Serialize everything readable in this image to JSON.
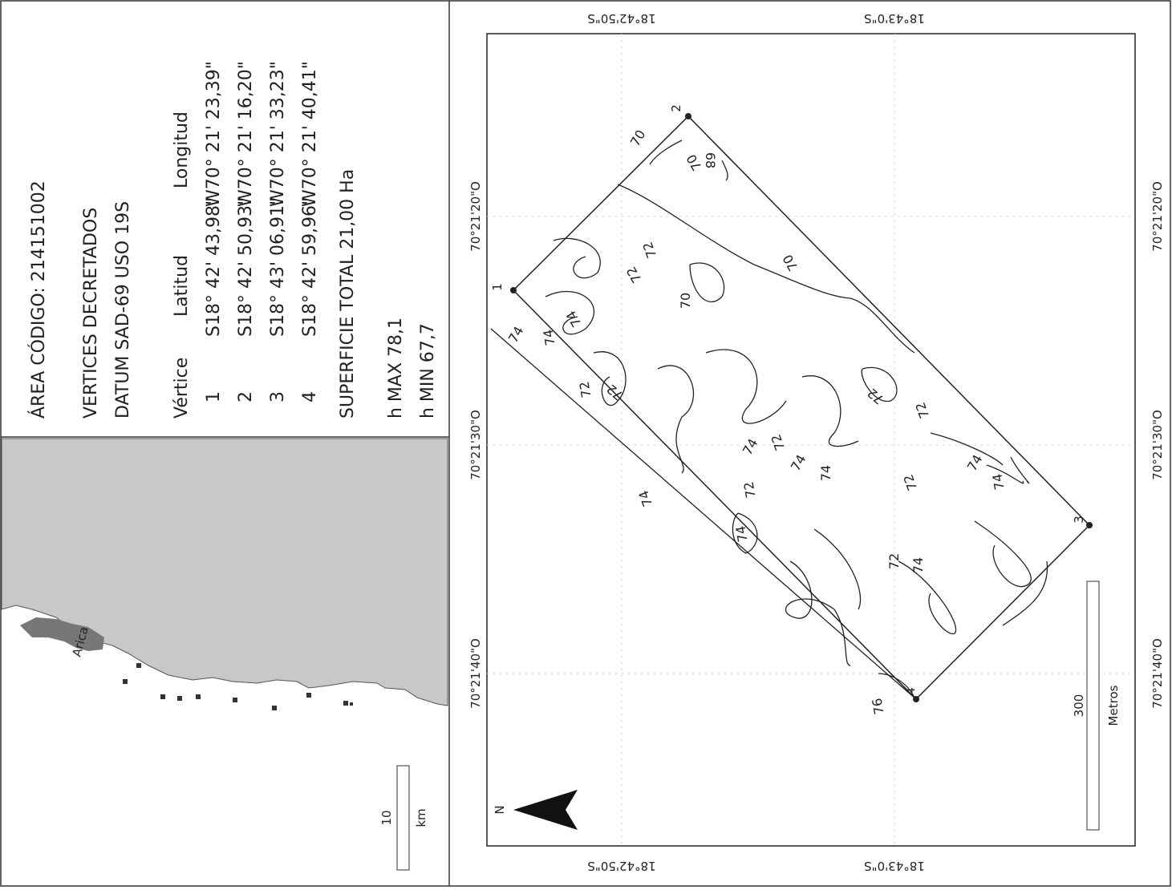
{
  "panel": {
    "area_code": "ÁREA CÓDIGO: 214151002",
    "vertices_title": "VERTICES DECRETADOS",
    "datum": "DATUM SAD-69 USO 19S",
    "table": {
      "header": [
        "Vértice",
        "Latitud",
        "Longitud"
      ],
      "rows": [
        [
          "1",
          "S18° 42' 43,98\"",
          "W70° 21' 23,39\""
        ],
        [
          "2",
          "S18° 42' 50,93\"",
          "W70° 21' 16,20\""
        ],
        [
          "3",
          "S18° 43' 06,91\"",
          "W70° 21' 33,23\""
        ],
        [
          "4",
          "S18° 42' 59,96\"",
          "W70° 21' 40,41\""
        ]
      ]
    },
    "surface": "SUPERFICIE TOTAL 21,00 Ha",
    "h_max": "h MAX 78,1",
    "h_min": "h MIN 67,7"
  },
  "inset": {
    "city": "Arica",
    "scale_value": "10",
    "scale_unit": "km"
  },
  "map": {
    "lat_labels": [
      "18°42'50\"S",
      "18°43'0\"S"
    ],
    "lon_labels": [
      "70°21'20\"O",
      "70°21'30\"O",
      "70°21'40\"O"
    ],
    "vertex_labels": [
      "1",
      "2",
      "3",
      "4"
    ],
    "contour_labels": [
      "74",
      "74",
      "74",
      "72",
      "72",
      "70",
      "70",
      "70",
      "72",
      "68",
      "70",
      "72",
      "72",
      "74",
      "72",
      "74",
      "74",
      "74",
      "72",
      "72",
      "74",
      "72",
      "74",
      "76",
      "74",
      "74",
      "72"
    ],
    "scale_value": "300",
    "scale_unit": "Metros",
    "north": "N"
  }
}
